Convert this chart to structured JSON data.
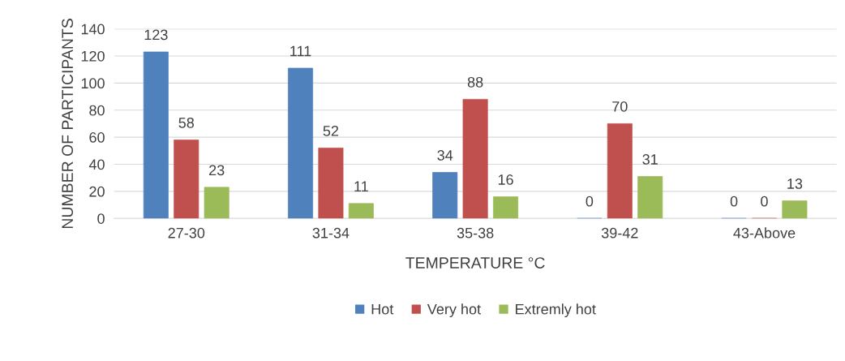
{
  "chart_data": {
    "type": "bar",
    "xlabel": "TEMPERATURE °C",
    "ylabel": "NUMBER OF PARTICIPANTS",
    "categories": [
      "27-30",
      "31-34",
      "35-38",
      "39-42",
      "43-Above"
    ],
    "series": [
      {
        "name": "Hot",
        "color": "#4f81bd",
        "values": [
          123,
          111,
          34,
          0,
          0
        ]
      },
      {
        "name": "Very hot",
        "color": "#c0504d",
        "values": [
          58,
          52,
          88,
          70,
          0
        ]
      },
      {
        "name": "Extremly hot",
        "color": "#9bbb59",
        "values": [
          23,
          11,
          16,
          31,
          13
        ]
      }
    ],
    "ylim": [
      0,
      140
    ],
    "yticks": [
      0,
      20,
      40,
      60,
      80,
      100,
      120,
      140
    ],
    "grid": "y",
    "legend": "bottom",
    "data_labels": true
  }
}
